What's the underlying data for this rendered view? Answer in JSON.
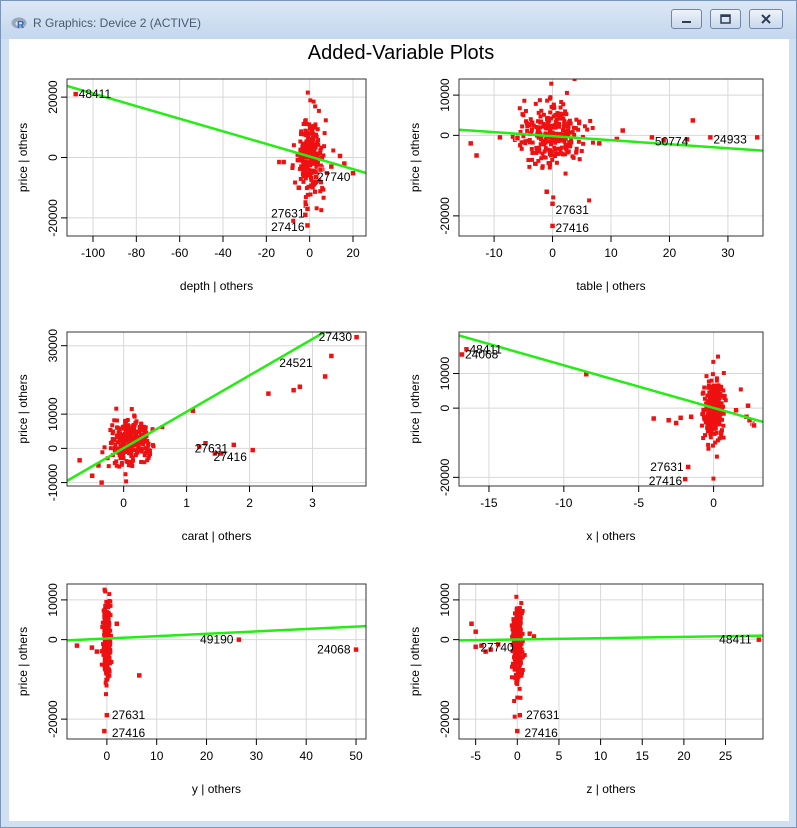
{
  "window": {
    "title": "R Graphics: Device 2 (ACTIVE)",
    "icons": {
      "app": "r-logo-icon",
      "minimize": "minimize-icon",
      "maximize": "maximize-icon",
      "close": "close-icon"
    }
  },
  "figure": {
    "title": "Added-Variable Plots"
  },
  "colors": {
    "points": "#ee1111",
    "fit_line": "#22ee11",
    "frame": "#333333",
    "grid": "#d8d8d8"
  },
  "chart_data": [
    {
      "type": "scatter",
      "xlabel": "depth | others",
      "ylabel": "price | others",
      "xlim": [
        -112,
        26
      ],
      "ylim": [
        -26000,
        26000
      ],
      "xticks": [
        -100,
        -80,
        -60,
        -40,
        -20,
        0,
        20
      ],
      "yticks": [
        -20000,
        0,
        20000
      ],
      "fit_line": [
        [
          -112,
          23700
        ],
        [
          26,
          -5100
        ]
      ],
      "cloud": {
        "xc": 0,
        "yc": 0,
        "xs": 2.8,
        "ys": 6000
      },
      "points": [
        [
          -108,
          21000
        ],
        [
          -14,
          -1500
        ],
        [
          -12,
          -1500
        ],
        [
          5,
          -4000
        ],
        [
          10,
          -3000
        ],
        [
          16,
          -2000
        ],
        [
          20,
          -5200
        ],
        [
          14,
          500
        ],
        [
          -1,
          -17000
        ],
        [
          -2,
          -19000
        ],
        [
          -1,
          -22500
        ],
        [
          3,
          -6500
        ],
        [
          -5,
          -10000
        ]
      ],
      "labels": [
        {
          "x": -108,
          "y": 21000,
          "text": "48411",
          "align": "start"
        },
        {
          "x": 2,
          "y": -6500,
          "text": "27740",
          "align": "start"
        },
        {
          "x": -1,
          "y": -18500,
          "text": "27631",
          "align": "end"
        },
        {
          "x": -1,
          "y": -23000,
          "text": "27416",
          "align": "end"
        }
      ]
    },
    {
      "type": "scatter",
      "xlabel": "table | others",
      "ylabel": "price | others",
      "xlim": [
        -16,
        36
      ],
      "ylim": [
        -25000,
        14000
      ],
      "xticks": [
        -10,
        0,
        10,
        20,
        30
      ],
      "yticks": [
        -20000,
        0,
        10000
      ],
      "fit_line": [
        [
          -16,
          1400
        ],
        [
          36,
          -3800
        ]
      ],
      "cloud": {
        "xc": 0,
        "yc": 0,
        "xs": 2.6,
        "ys": 3800
      },
      "points": [
        [
          -14,
          -2000
        ],
        [
          -13,
          -5000
        ],
        [
          -9,
          -500
        ],
        [
          -6,
          -700
        ],
        [
          17,
          -500
        ],
        [
          19,
          -1200
        ],
        [
          23,
          -1000
        ],
        [
          24,
          3700
        ],
        [
          27,
          -500
        ],
        [
          35,
          -500
        ],
        [
          11,
          -900
        ],
        [
          12,
          1200
        ],
        [
          8,
          -2000
        ],
        [
          0,
          -17000
        ],
        [
          -1,
          -14000
        ],
        [
          0,
          -22500
        ]
      ],
      "labels": [
        {
          "x": 17,
          "y": -1500,
          "text": "50774",
          "align": "start"
        },
        {
          "x": 27,
          "y": -1000,
          "text": "24933",
          "align": "start"
        },
        {
          "x": 0,
          "y": -18500,
          "text": "27631",
          "align": "start"
        },
        {
          "x": 0,
          "y": -23000,
          "text": "27416",
          "align": "start"
        }
      ]
    },
    {
      "type": "scatter",
      "xlabel": "carat | others",
      "ylabel": "price | others",
      "xlim": [
        -0.9,
        3.85
      ],
      "ylim": [
        -11000,
        34000
      ],
      "xticks": [
        0,
        1,
        2,
        3
      ],
      "yticks": [
        -10000,
        0,
        10000,
        30000
      ],
      "fit_line": [
        [
          -0.9,
          -9500
        ],
        [
          3.85,
          41000
        ]
      ],
      "cloud": {
        "xc": 0.1,
        "yc": 2000,
        "xs": 0.15,
        "ys": 2800
      },
      "points": [
        [
          3.7,
          32500
        ],
        [
          3.3,
          27000
        ],
        [
          3.2,
          21000
        ],
        [
          2.8,
          18000
        ],
        [
          2.7,
          17000
        ],
        [
          2.3,
          16000
        ],
        [
          2.05,
          -500
        ],
        [
          1.75,
          1000
        ],
        [
          1.3,
          1500
        ],
        [
          1.1,
          11000
        ],
        [
          1.2,
          500
        ],
        [
          -0.7,
          -3500
        ],
        [
          -0.5,
          -8000
        ],
        [
          -0.35,
          -10000
        ],
        [
          -0.4,
          -5000
        ],
        [
          1.45,
          -1500
        ],
        [
          1.55,
          -1500
        ]
      ],
      "labels": [
        {
          "x": 3.05,
          "y": 32500,
          "text": "27430",
          "align": "start"
        },
        {
          "x": 3.05,
          "y": 25000,
          "text": "24521",
          "align": "end"
        },
        {
          "x": 1.08,
          "y": 0,
          "text": "27631",
          "align": "start"
        },
        {
          "x": 1.38,
          "y": -2500,
          "text": "27416",
          "align": "start"
        }
      ]
    },
    {
      "type": "scatter",
      "xlabel": "x | others",
      "ylabel": "price | others",
      "xlim": [
        -17,
        3.3
      ],
      "ylim": [
        -22500,
        22000
      ],
      "xticks": [
        -15,
        -10,
        -5,
        0
      ],
      "yticks": [
        -20000,
        0,
        10000
      ],
      "fit_line": [
        [
          -17,
          21000
        ],
        [
          3.3,
          -4000
        ]
      ],
      "cloud": {
        "xc": 0,
        "yc": 0,
        "xs": 0.35,
        "ys": 4000
      },
      "points": [
        [
          -16.5,
          17000
        ],
        [
          -16.8,
          15500
        ],
        [
          -8.5,
          9800
        ],
        [
          -4,
          -3000
        ],
        [
          -3,
          -3500
        ],
        [
          -2.2,
          -2800
        ],
        [
          -2.5,
          -4300
        ],
        [
          -1.5,
          -2500
        ],
        [
          2.2,
          -2500
        ],
        [
          2.6,
          -4500
        ],
        [
          2.7,
          -5000
        ],
        [
          2.4,
          -3500
        ],
        [
          -1.7,
          -17000
        ],
        [
          -1.9,
          -20500
        ],
        [
          1.5,
          -600
        ],
        [
          2.3,
          700
        ]
      ],
      "labels": [
        {
          "x": -16.5,
          "y": 17000,
          "text": "48411",
          "align": "start"
        },
        {
          "x": -16.8,
          "y": 15500,
          "text": "24068",
          "align": "start"
        },
        {
          "x": -1.8,
          "y": -17000,
          "text": "27631",
          "align": "end"
        },
        {
          "x": -1.9,
          "y": -21000,
          "text": "27416",
          "align": "end"
        }
      ]
    },
    {
      "type": "scatter",
      "xlabel": "y | others",
      "ylabel": "price | others",
      "xlim": [
        -8,
        52
      ],
      "ylim": [
        -25000,
        14000
      ],
      "xticks": [
        0,
        10,
        20,
        30,
        40,
        50
      ],
      "yticks": [
        -20000,
        0,
        10000
      ],
      "fit_line": [
        [
          -8,
          -200
        ],
        [
          52,
          3400
        ]
      ],
      "cloud": {
        "xc": 0,
        "yc": 0,
        "xs": 0.35,
        "ys": 4500
      },
      "points": [
        [
          -6,
          -1500
        ],
        [
          -3,
          -2000
        ],
        [
          -2,
          -3000
        ],
        [
          2,
          4000
        ],
        [
          6.5,
          -9000
        ],
        [
          26.5,
          0
        ],
        [
          50,
          -2500
        ],
        [
          0,
          -19000
        ],
        [
          -0.5,
          -23000
        ]
      ],
      "labels": [
        {
          "x": 26,
          "y": 0,
          "text": "49190",
          "align": "end"
        },
        {
          "x": 49.5,
          "y": -2500,
          "text": "24068",
          "align": "end"
        },
        {
          "x": 0.4,
          "y": -19000,
          "text": "27631",
          "align": "start"
        },
        {
          "x": 0.4,
          "y": -23500,
          "text": "27416",
          "align": "start"
        }
      ]
    },
    {
      "type": "scatter",
      "xlabel": "z | others",
      "ylabel": "price | others",
      "xlim": [
        -7,
        29.5
      ],
      "ylim": [
        -25000,
        14000
      ],
      "xticks": [
        -5,
        0,
        5,
        10,
        15,
        20,
        25
      ],
      "yticks": [
        -20000,
        0,
        10000
      ],
      "fit_line": [
        [
          -7,
          -200
        ],
        [
          29.5,
          1000
        ]
      ],
      "cloud": {
        "xc": 0,
        "yc": 0,
        "xs": 0.3,
        "ys": 4500
      },
      "points": [
        [
          -5.5,
          4000
        ],
        [
          -5,
          2000
        ],
        [
          -5,
          -1800
        ],
        [
          -4.3,
          -1500
        ],
        [
          -3.8,
          -3000
        ],
        [
          -3.2,
          -2500
        ],
        [
          -2.3,
          -1200
        ],
        [
          1.5,
          1500
        ],
        [
          2,
          800
        ],
        [
          29,
          0
        ],
        [
          0.3,
          -19000
        ],
        [
          0,
          -23000
        ]
      ],
      "labels": [
        {
          "x": -4.8,
          "y": -2000,
          "text": "27740",
          "align": "start"
        },
        {
          "x": 28.5,
          "y": 0,
          "text": "48411",
          "align": "end"
        },
        {
          "x": 0.7,
          "y": -19000,
          "text": "27631",
          "align": "start"
        },
        {
          "x": 0.5,
          "y": -23500,
          "text": "27416",
          "align": "start"
        }
      ]
    }
  ]
}
